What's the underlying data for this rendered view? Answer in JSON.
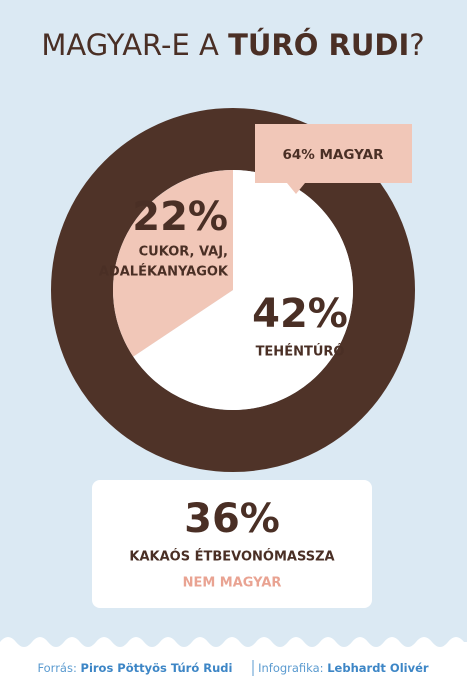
{
  "chart_data": {
    "type": "donut",
    "title_parts": [
      "MAGYAR-E A",
      "TÚRÓ RUDI",
      "?"
    ],
    "categories": [
      [
        "CUKOR, VAJ,",
        "ADALÉKANYAGOK"
      ],
      [
        "TEHÉNTÚRÓ"
      ],
      [
        "KAKAÓS ÉTBEVONÓMASSZA"
      ]
    ],
    "values": [
      22,
      42,
      36
    ],
    "value_labels": [
      "22%",
      "42%",
      "36%"
    ],
    "colors": [
      "#f1c7b8",
      "#ffffff",
      "#4f3328"
    ],
    "annotations": [
      {
        "value": 64,
        "label": "64% MAGYAR"
      },
      {
        "label": "NEM MAGYAR"
      }
    ],
    "source": {
      "label": "Forrás:",
      "value": "Piros Pöttyös Túró Rudi"
    },
    "credit": {
      "label": "Infografika:",
      "value": "Lebhardt Olivér"
    }
  }
}
